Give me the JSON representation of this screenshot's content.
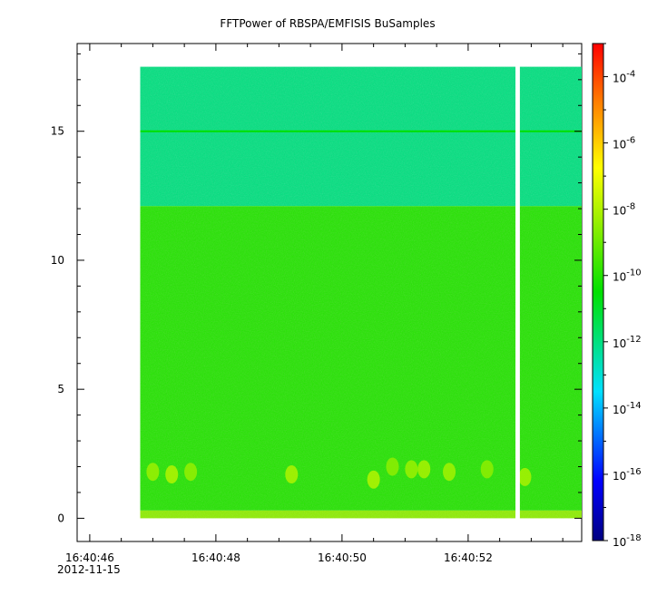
{
  "chart_data": {
    "type": "heatmap",
    "title": "FFTPower of RBSPA/EMFISIS  BuSamples",
    "xlabel": "",
    "ylabel": "",
    "x_axis": {
      "start": "16:40:46",
      "ticks": [
        {
          "value": 46,
          "label": "16:40:46",
          "sublabel": "2012-11-15"
        },
        {
          "value": 48,
          "label": "16:40:48",
          "sublabel": ""
        },
        {
          "value": 50,
          "label": "16:40:50",
          "sublabel": ""
        },
        {
          "value": 52,
          "label": "16:40:52",
          "sublabel": ""
        }
      ],
      "range": [
        45.8,
        53.8
      ]
    },
    "y_axis": {
      "ticks": [
        {
          "value": 0,
          "label": "0"
        },
        {
          "value": 5,
          "label": "5"
        },
        {
          "value": 10,
          "label": "10"
        },
        {
          "value": 15,
          "label": "15"
        }
      ],
      "range": [
        -0.9,
        18.4
      ]
    },
    "colorbar": {
      "scale": "log",
      "range": [
        1e-18,
        0.001
      ],
      "ticks": [
        {
          "exp": -4,
          "base": "10",
          "power": "-4"
        },
        {
          "exp": -6,
          "base": "10",
          "power": "-6"
        },
        {
          "exp": -8,
          "base": "10",
          "power": "-8"
        },
        {
          "exp": -10,
          "base": "10",
          "power": "-10"
        },
        {
          "exp": -12,
          "base": "10",
          "power": "-12"
        },
        {
          "exp": -14,
          "base": "10",
          "power": "-14"
        },
        {
          "exp": -16,
          "base": "10",
          "power": "-16"
        },
        {
          "exp": -18,
          "base": "10",
          "power": "-18"
        }
      ]
    },
    "data_extent": {
      "x": [
        46.8,
        53.8
      ],
      "y": [
        0,
        17.5
      ]
    },
    "gap": {
      "x": [
        52.75,
        52.82
      ]
    },
    "bands": [
      {
        "y": [
          12.1,
          17.5
        ],
        "log_power": -12
      },
      {
        "y": [
          0.3,
          12.1
        ],
        "log_power": -10
      },
      {
        "y": [
          0,
          0.3
        ],
        "log_power": -8.5
      }
    ],
    "lines": [
      {
        "y": 15.0,
        "log_power": -10.5
      }
    ],
    "bursts": [
      {
        "x": 47.0,
        "y": 1.8,
        "log_power": -8.2
      },
      {
        "x": 47.3,
        "y": 1.7,
        "log_power": -7.8
      },
      {
        "x": 47.6,
        "y": 1.8,
        "log_power": -8.3
      },
      {
        "x": 49.2,
        "y": 1.7,
        "log_power": -7.9
      },
      {
        "x": 50.5,
        "y": 1.5,
        "log_power": -7.8
      },
      {
        "x": 50.8,
        "y": 2.0,
        "log_power": -8.4
      },
      {
        "x": 51.1,
        "y": 1.9,
        "log_power": -8.2
      },
      {
        "x": 51.3,
        "y": 1.9,
        "log_power": -8.0
      },
      {
        "x": 51.7,
        "y": 1.8,
        "log_power": -8.1
      },
      {
        "x": 52.3,
        "y": 1.9,
        "log_power": -8.4
      },
      {
        "x": 52.9,
        "y": 1.6,
        "log_power": -8.0
      }
    ]
  }
}
